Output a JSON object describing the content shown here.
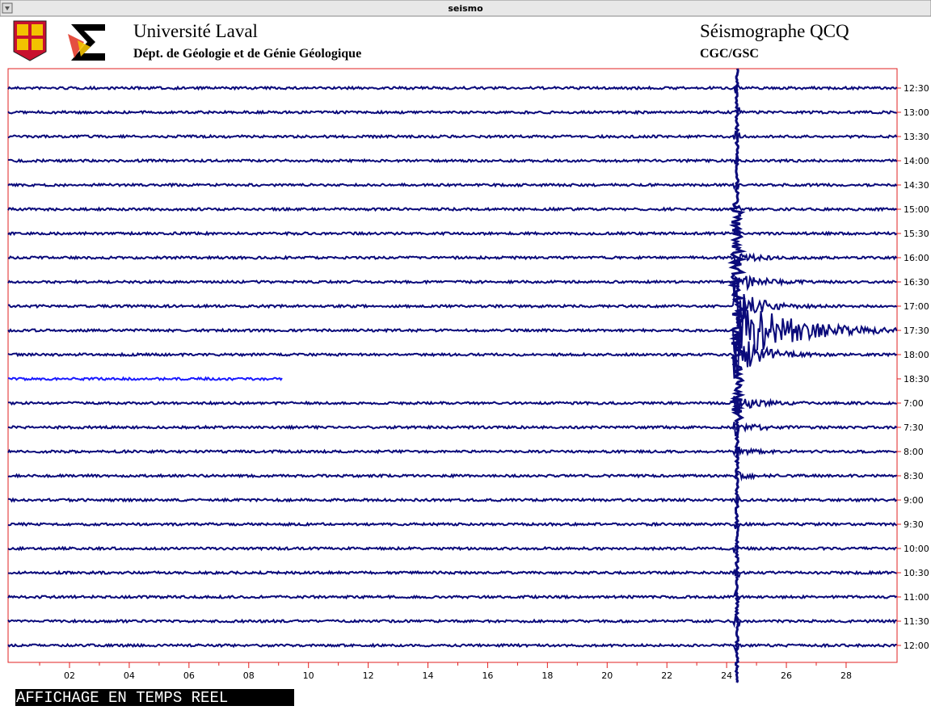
{
  "window": {
    "title": "seismo"
  },
  "header": {
    "university": "Université Laval",
    "department": "Dépt. de Géologie et de Génie Géologique",
    "station": "Séismographe QCQ",
    "agency": "CGC/GSC"
  },
  "seismogram": {
    "row_labels": [
      "12:30",
      "13:00",
      "13:30",
      "14:00",
      "14:30",
      "15:00",
      "15:30",
      "16:00",
      "16:30",
      "17:00",
      "17:30",
      "18:00",
      "18:30",
      "7:00",
      "7:30",
      "8:00",
      "8:30",
      "9:00",
      "9:30",
      "10:00",
      "10:30",
      "11:00",
      "11:30",
      "12:00"
    ],
    "x_ticks": [
      "02",
      "04",
      "06",
      "08",
      "10",
      "12",
      "14",
      "16",
      "18",
      "20",
      "22",
      "24",
      "26",
      "28"
    ]
  },
  "footer": {
    "status": "AFFICHAGE EN TEMPS REEL"
  }
}
